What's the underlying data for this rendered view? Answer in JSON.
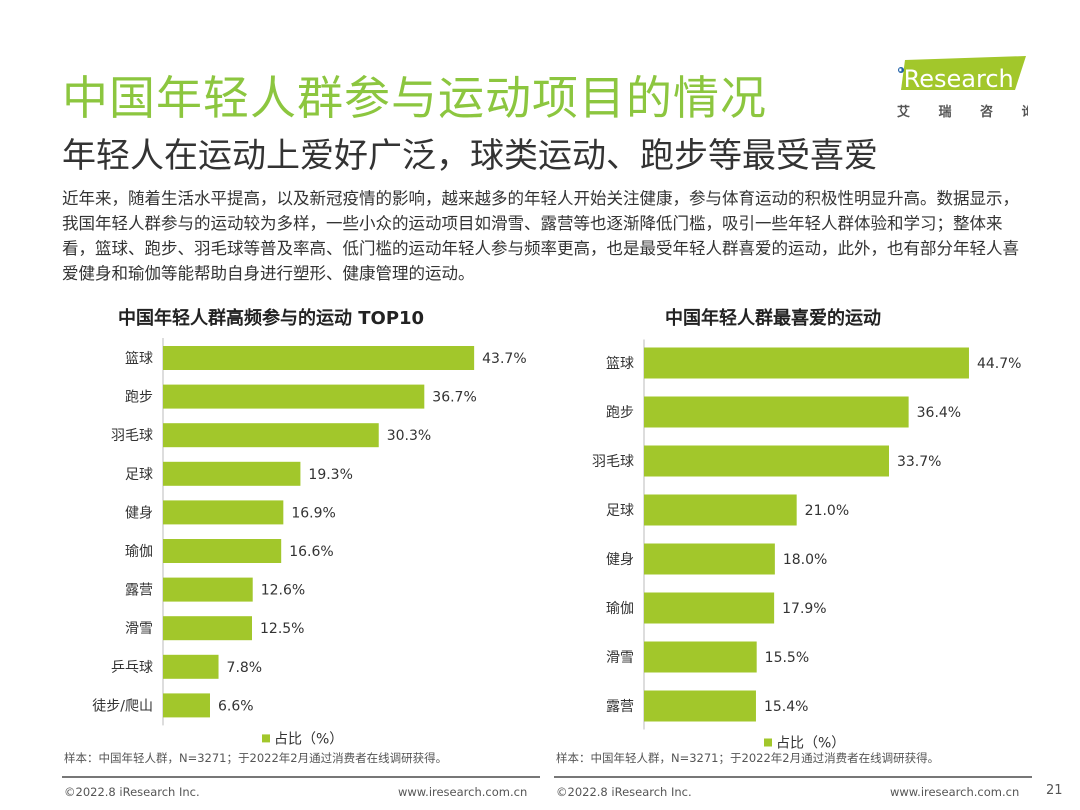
{
  "header": {
    "title": "中国年轻人群参与运动项目的情况",
    "subtitle": "年轻人在运动上爱好广泛，球类运动、跑步等最受喜爱",
    "logo_text": "iResearch",
    "logo_cn": "艾 瑞 咨 询"
  },
  "body_text": "近年来，随着生活水平提高，以及新冠疫情的影响，越来越多的年轻人开始关注健康，参与体育运动的积极性明显升高。数据显示，我国年轻人群参与的运动较为多样，一些小众的运动项目如滑雪、露营等也逐渐降低门槛，吸引一些年轻人群体验和学习；整体来看，篮球、跑步、羽毛球等普及率高、低门槛的运动年轻人参与频率更高，也是最受年轻人群喜爱的运动，此外，也有部分年轻人喜爱健身和瑜伽等能帮助自身进行塑形、健康管理的运动。",
  "colors": {
    "bar": "#a2c72b",
    "title": "#8cc63f"
  },
  "chart_data": [
    {
      "type": "bar",
      "orientation": "horizontal",
      "title": "中国年轻人群高频参与的运动 TOP10",
      "categories": [
        "篮球",
        "跑步",
        "羽毛球",
        "足球",
        "健身",
        "瑜伽",
        "露营",
        "滑雪",
        "乒乓球",
        "徒步/爬山"
      ],
      "series": [
        {
          "name": "占比（%）",
          "values": [
            43.7,
            36.7,
            30.3,
            19.3,
            16.9,
            16.6,
            12.6,
            12.5,
            7.8,
            6.6
          ]
        }
      ],
      "value_labels": [
        "43.7%",
        "36.7%",
        "30.3%",
        "19.3%",
        "16.9%",
        "16.6%",
        "12.6%",
        "12.5%",
        "7.8%",
        "6.6%"
      ],
      "legend": "bottom",
      "note": "样本：中国年轻人群，N=3271；于2022年2月通过消费者在线调研获得。"
    },
    {
      "type": "bar",
      "orientation": "horizontal",
      "title": "中国年轻人群最喜爱的运动",
      "categories": [
        "篮球",
        "跑步",
        "羽毛球",
        "足球",
        "健身",
        "瑜伽",
        "滑雪",
        "露营"
      ],
      "series": [
        {
          "name": "占比（%）",
          "values": [
            44.7,
            36.4,
            33.7,
            21.0,
            18.0,
            17.9,
            15.5,
            15.4
          ]
        }
      ],
      "value_labels": [
        "44.7%",
        "36.4%",
        "33.7%",
        "21.0%",
        "18.0%",
        "17.9%",
        "15.5%",
        "15.4%"
      ],
      "legend": "bottom",
      "note": "样本：中国年轻人群，N=3271；于2022年2月通过消费者在线调研获得。"
    }
  ],
  "footer": {
    "copyright": "©2022.8 iResearch Inc.",
    "url": "www.iresearch.com.cn",
    "page": "21"
  }
}
